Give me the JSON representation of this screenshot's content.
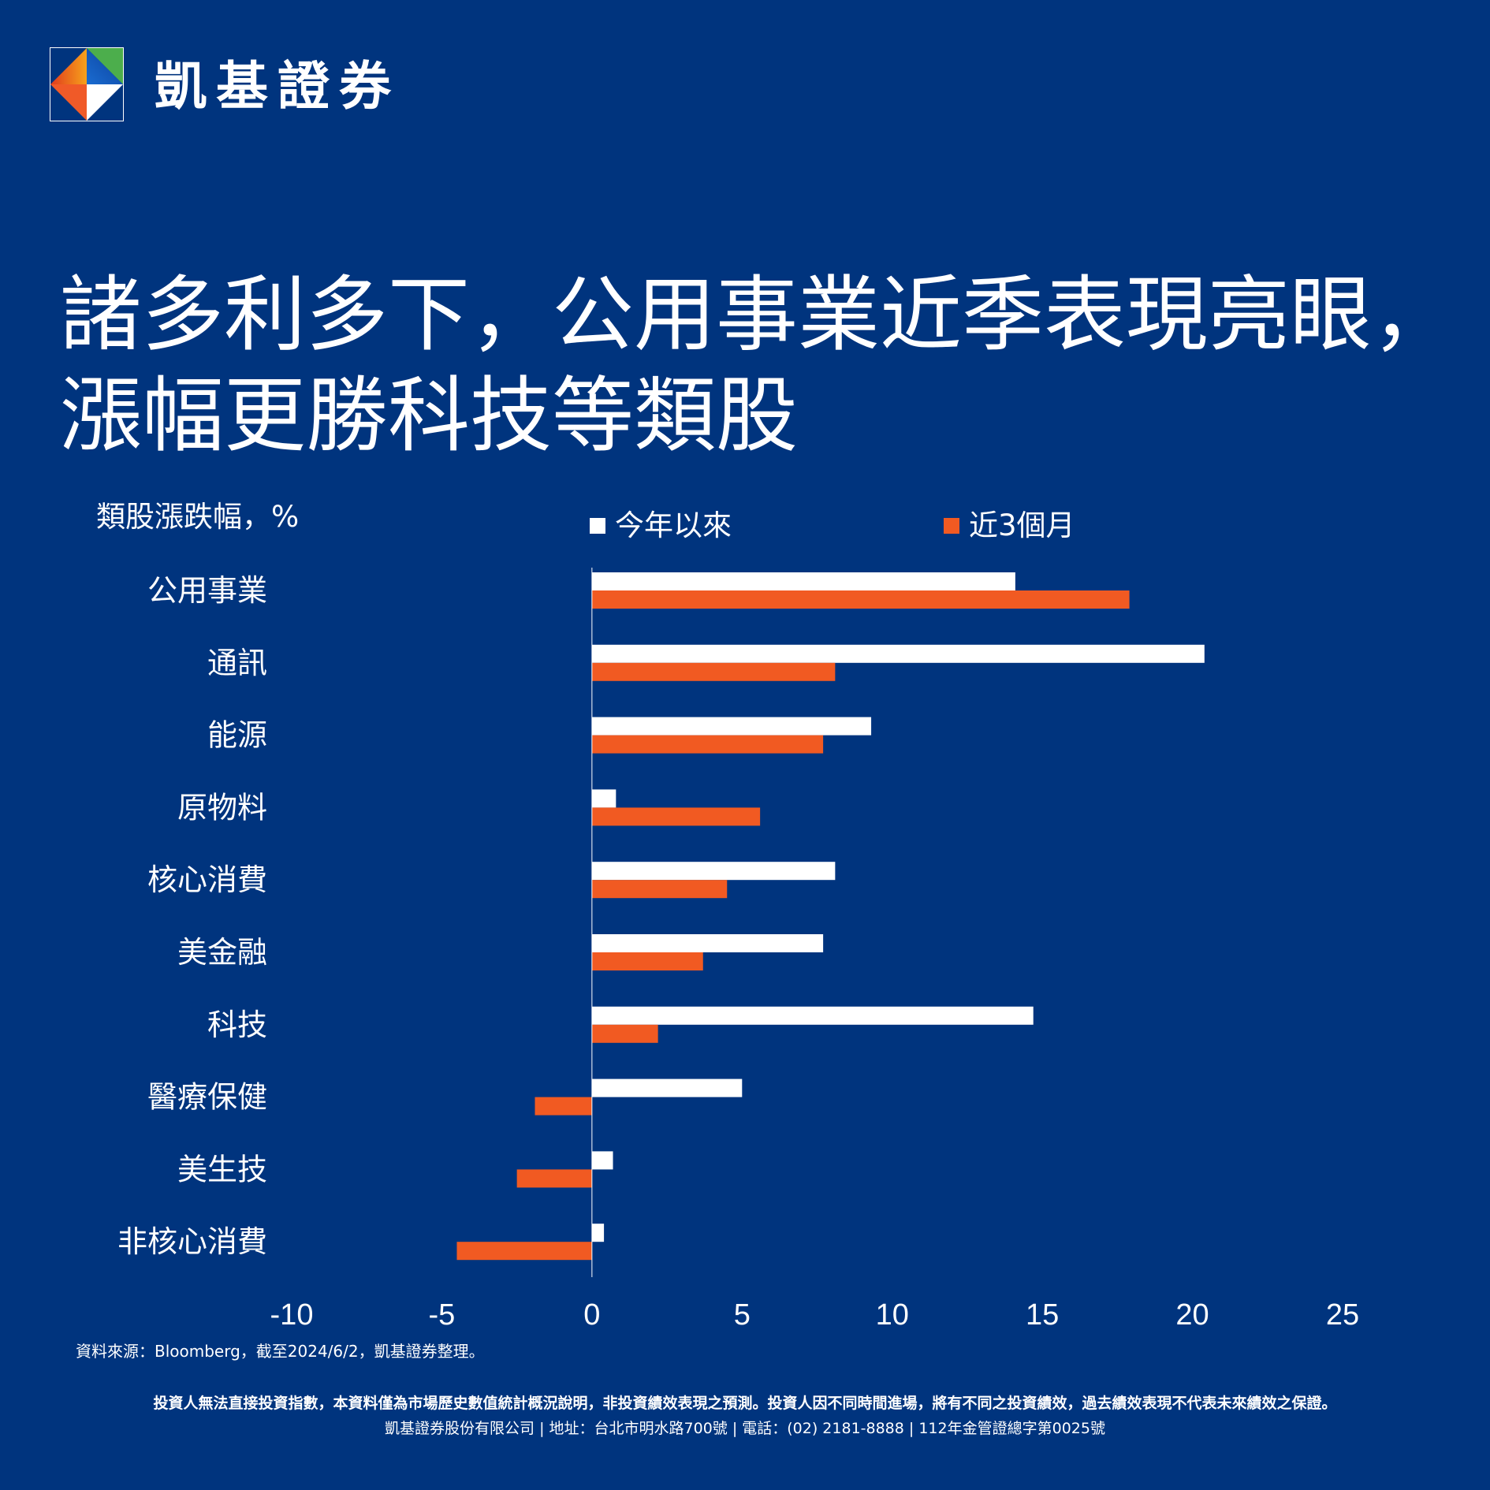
{
  "brand": {
    "name": "凱基證券"
  },
  "title": {
    "line1": "諸多利多下，公用事業近季表現亮眼，",
    "line2": "漲幅更勝科技等類股"
  },
  "colors": {
    "background": "#00347e",
    "ytd": "#ffffff",
    "three_month": "#f15a22"
  },
  "chart_data": {
    "type": "bar",
    "orientation": "horizontal",
    "unit_label": "類股漲跌幅，%",
    "categories": [
      "公用事業",
      "通訊",
      "能源",
      "原物料",
      "核心消費",
      "美金融",
      "科技",
      "醫療保健",
      "美生技",
      "非核心消費"
    ],
    "series": [
      {
        "name": "今年以來",
        "values": [
          14.1,
          20.4,
          9.3,
          0.8,
          8.1,
          7.7,
          14.7,
          5.0,
          0.7,
          0.4
        ]
      },
      {
        "name": "近3個月",
        "values": [
          17.9,
          8.1,
          7.7,
          5.6,
          4.5,
          3.7,
          2.2,
          -1.9,
          -2.5,
          -4.5
        ]
      }
    ],
    "xlim": [
      -10,
      25
    ],
    "xticks": [
      "-10",
      "-5",
      "0",
      "5",
      "10",
      "15",
      "20",
      "25"
    ],
    "legend": "top",
    "grid": false
  },
  "source": "資料來源：Bloomberg，截至2024/6/2，凱基證券整理。",
  "footer": {
    "disclaimer": "投資人無法直接投資指數，本資料僅為市場歷史數值統計概況說明，非投資績效表現之預測。投資人因不同時間進場，將有不同之投資績效，過去績效表現不代表未來績效之保證。",
    "company": "凱基證券股份有限公司 | 地址：台北市明水路700號 | 電話：(02) 2181-8888 | 112年金管證總字第0025號"
  }
}
